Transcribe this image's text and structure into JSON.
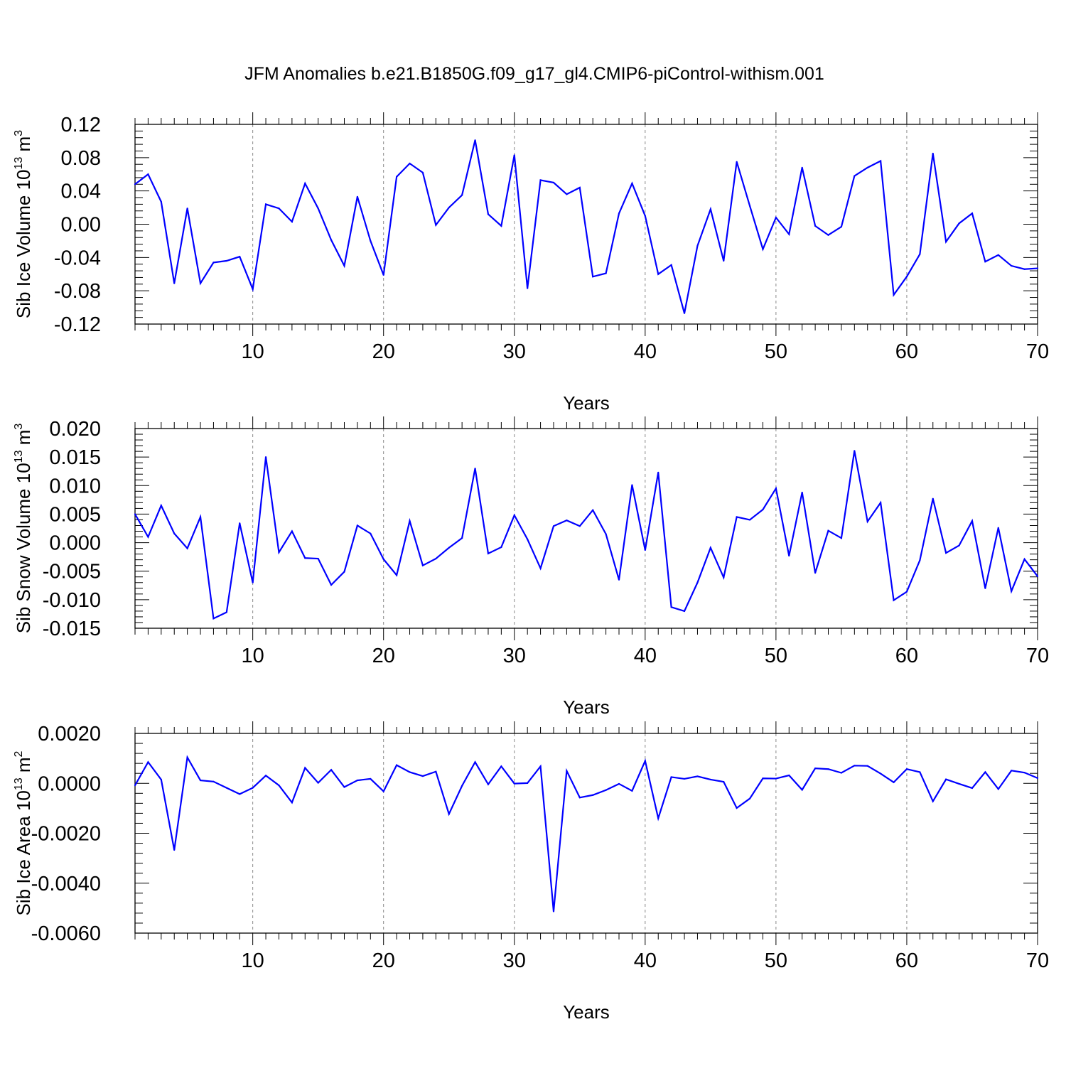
{
  "title": "JFM Anomalies b.e21.B1850G.f09_g17_gl4.CMIP6-piControl-withism.001",
  "colors": {
    "series": "#0000ff",
    "axes": "#000000",
    "grid": "#888888"
  },
  "chart_data": [
    {
      "type": "line",
      "ylabel": "Sib Ice Volume 10",
      "ylabel_exponent": "13",
      "ylabel_unit": " m",
      "ylabel_unit_exponent": "3",
      "xlabel": "Years",
      "xlim": [
        1,
        70
      ],
      "ylim": [
        -0.12,
        0.12
      ],
      "yticks": [
        -0.12,
        -0.08,
        -0.04,
        0.0,
        0.04,
        0.08,
        0.12
      ],
      "ytick_labels": [
        "-0.12",
        "-0.08",
        "-0.04",
        "0.00",
        "0.04",
        "0.08",
        "0.12"
      ],
      "xticks": [
        10,
        20,
        30,
        40,
        50,
        60,
        70
      ],
      "xtick_labels": [
        "10",
        "20",
        "30",
        "40",
        "50",
        "60",
        "70"
      ],
      "grid": "x-dashed",
      "x": [
        1,
        2,
        3,
        4,
        5,
        6,
        7,
        8,
        9,
        10,
        11,
        12,
        13,
        14,
        15,
        16,
        17,
        18,
        19,
        20,
        21,
        22,
        23,
        24,
        25,
        26,
        27,
        28,
        29,
        30,
        31,
        32,
        33,
        34,
        35,
        36,
        37,
        38,
        39,
        40,
        41,
        42,
        43,
        44,
        45,
        46,
        47,
        48,
        49,
        50,
        51,
        52,
        53,
        54,
        55,
        56,
        57,
        58,
        59,
        60,
        61,
        62,
        63,
        64,
        65,
        66,
        67,
        68,
        69,
        70
      ],
      "values": [
        0.048,
        0.06,
        0.027,
        -0.071,
        0.019,
        -0.071,
        -0.046,
        -0.044,
        -0.039,
        -0.078,
        0.024,
        0.019,
        0.003,
        0.049,
        0.019,
        -0.019,
        -0.05,
        0.033,
        -0.02,
        -0.061,
        0.057,
        0.073,
        0.062,
        -0.001,
        0.02,
        0.035,
        0.101,
        0.012,
        -0.002,
        0.083,
        -0.077,
        0.053,
        0.05,
        0.036,
        0.044,
        -0.063,
        -0.059,
        0.013,
        0.049,
        0.01,
        -0.06,
        -0.049,
        -0.107,
        -0.026,
        0.018,
        -0.044,
        0.075,
        0.022,
        -0.03,
        0.008,
        -0.012,
        0.068,
        -0.002,
        -0.013,
        -0.003,
        0.058,
        0.068,
        0.076,
        -0.085,
        -0.063,
        -0.036,
        0.085,
        -0.021,
        0.001,
        0.013,
        -0.045,
        -0.037,
        -0.05,
        -0.054,
        -0.053
      ]
    },
    {
      "type": "line",
      "ylabel": "Sib Snow Volume 10",
      "ylabel_exponent": "13",
      "ylabel_unit": " m",
      "ylabel_unit_exponent": "3",
      "xlabel": "Years",
      "xlim": [
        1,
        70
      ],
      "ylim": [
        -0.015,
        0.02
      ],
      "yticks": [
        -0.015,
        -0.01,
        -0.005,
        0.0,
        0.005,
        0.01,
        0.015,
        0.02
      ],
      "ytick_labels": [
        "-0.015",
        "-0.010",
        "-0.005",
        "0.000",
        "0.005",
        "0.010",
        "0.015",
        "0.020"
      ],
      "xticks": [
        10,
        20,
        30,
        40,
        50,
        60,
        70
      ],
      "xtick_labels": [
        "10",
        "20",
        "30",
        "40",
        "50",
        "60",
        "70"
      ],
      "grid": "x-dashed",
      "x": [
        1,
        2,
        3,
        4,
        5,
        6,
        7,
        8,
        9,
        10,
        11,
        12,
        13,
        14,
        15,
        16,
        17,
        18,
        19,
        20,
        21,
        22,
        23,
        24,
        25,
        26,
        27,
        28,
        29,
        30,
        31,
        32,
        33,
        34,
        35,
        36,
        37,
        38,
        39,
        40,
        41,
        42,
        43,
        44,
        45,
        46,
        47,
        48,
        49,
        50,
        51,
        52,
        53,
        54,
        55,
        56,
        57,
        58,
        59,
        60,
        61,
        62,
        63,
        64,
        65,
        66,
        67,
        68,
        69,
        70
      ],
      "values": [
        0.005,
        0.001,
        0.0065,
        0.0016,
        -0.001,
        0.0045,
        -0.0133,
        -0.0122,
        0.0034,
        -0.007,
        0.015,
        -0.0017,
        0.002,
        -0.0027,
        -0.0028,
        -0.0074,
        -0.0051,
        0.003,
        0.0016,
        -0.0029,
        -0.0057,
        0.0038,
        -0.004,
        -0.0028,
        -0.0009,
        0.0008,
        0.013,
        -0.0019,
        -0.0008,
        0.0048,
        0.0006,
        -0.0045,
        0.0029,
        0.0039,
        0.0029,
        0.0057,
        0.0015,
        -0.0065,
        0.0101,
        -0.0013,
        0.0123,
        -0.0113,
        -0.012,
        -0.007,
        -0.0009,
        -0.0061,
        0.0045,
        0.004,
        0.0058,
        0.0095,
        -0.0023,
        0.0088,
        -0.0053,
        0.0021,
        0.0008,
        0.0161,
        0.0037,
        0.007,
        -0.0101,
        -0.0086,
        -0.0031,
        0.0077,
        -0.0018,
        -0.0005,
        0.0038,
        -0.008,
        0.0026,
        -0.0085,
        -0.0029,
        -0.0059
      ]
    },
    {
      "type": "line",
      "ylabel": "Sib Ice Area 10",
      "ylabel_exponent": "13",
      "ylabel_unit": " m",
      "ylabel_unit_exponent": "2",
      "xlabel": "Years",
      "xlim": [
        1,
        70
      ],
      "ylim": [
        -0.006,
        0.002
      ],
      "yticks": [
        -0.006,
        -0.004,
        -0.002,
        0.0,
        0.002
      ],
      "ytick_labels": [
        "-0.0060",
        "-0.0040",
        "-0.0020",
        "0.0000",
        "0.0020"
      ],
      "xticks": [
        10,
        20,
        30,
        40,
        50,
        60,
        70
      ],
      "xtick_labels": [
        "10",
        "20",
        "30",
        "40",
        "50",
        "60",
        "70"
      ],
      "grid": "x-dashed",
      "x": [
        1,
        2,
        3,
        4,
        5,
        6,
        7,
        8,
        9,
        10,
        11,
        12,
        13,
        14,
        15,
        16,
        17,
        18,
        19,
        20,
        21,
        22,
        23,
        24,
        25,
        26,
        27,
        28,
        29,
        30,
        31,
        32,
        33,
        34,
        35,
        36,
        37,
        38,
        39,
        40,
        41,
        42,
        43,
        44,
        45,
        46,
        47,
        48,
        49,
        50,
        51,
        52,
        53,
        54,
        55,
        56,
        57,
        58,
        59,
        60,
        61,
        62,
        63,
        64,
        65,
        66,
        67,
        68,
        69,
        70
      ],
      "values": [
        -8e-05,
        0.00085,
        0.00015,
        -0.00267,
        0.00104,
        0.00012,
        7e-05,
        -0.00018,
        -0.00043,
        -0.00018,
        0.00031,
        -8e-05,
        -0.00077,
        0.00062,
        2e-05,
        0.00054,
        -0.00015,
        0.00012,
        0.00018,
        -0.00032,
        0.00073,
        0.00045,
        0.00029,
        0.00047,
        -0.00123,
        -0.0001,
        0.00085,
        -4e-05,
        0.00068,
        -1e-05,
        1e-05,
        0.00068,
        -0.00513,
        0.0005,
        -0.00057,
        -0.00047,
        -0.00027,
        -2e-05,
        -0.0003,
        0.0009,
        -0.0014,
        0.00025,
        0.00018,
        0.00028,
        0.00015,
        6e-05,
        -0.00099,
        -0.00061,
        0.0002,
        0.00019,
        0.00032,
        -0.00026,
        0.0006,
        0.00057,
        0.00042,
        0.00071,
        0.0007,
        0.00039,
        4e-05,
        0.00057,
        0.00045,
        -0.00072,
        0.00016,
        -2e-05,
        -0.00019,
        0.00045,
        -0.00023,
        0.00051,
        0.00043,
        0.00021
      ]
    }
  ]
}
